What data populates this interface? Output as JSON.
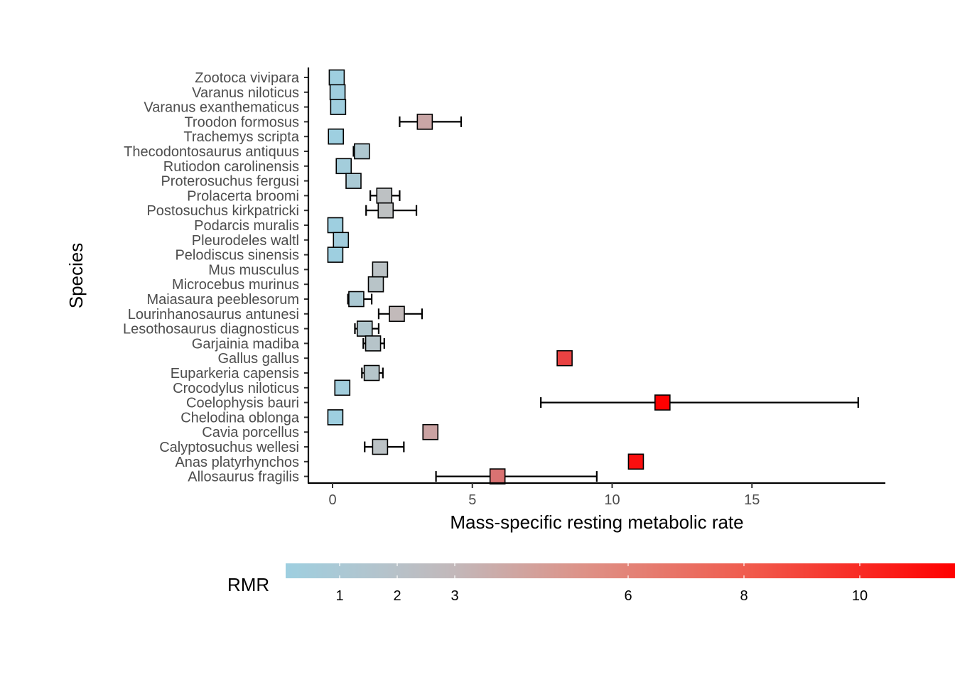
{
  "chart_data": {
    "type": "scatter",
    "subtype": "dot-with-error-bars",
    "xlabel": "Mass-specific resting metabolic rate",
    "ylabel": "Species",
    "xlim": [
      -0.85,
      19.6
    ],
    "x_ticks": [
      0,
      5,
      10,
      15
    ],
    "x_tick_labels": [
      "0",
      "5",
      "10",
      "15"
    ],
    "grid": false,
    "legend": {
      "title": "RMR",
      "position": "bottom",
      "type": "colorbar",
      "ticks": [
        1,
        2,
        3,
        6,
        8,
        10
      ],
      "tick_labels": [
        "1",
        "2",
        "3",
        "6",
        "8",
        "10"
      ],
      "range": [
        0.1,
        11.6
      ]
    },
    "colors": {
      "low": "#9ecfe0",
      "mid": "#c0c0c0",
      "high": "#ff0000",
      "errorbar": "#000000",
      "marker_edge": "#000000"
    },
    "species": [
      "Zootoca vivipara",
      "Varanus niloticus",
      "Varanus exanthematicus",
      "Troodon formosus",
      "Trachemys scripta",
      "Thecodontosaurus antiquus",
      "Rutiodon carolinensis",
      "Proterosuchus fergusi",
      "Prolacerta broomi",
      "Postosuchus kirkpatricki",
      "Podarcis muralis",
      "Pleurodeles waltl",
      "Pelodiscus sinensis",
      "Mus musculus",
      "Microcebus murinus",
      "Maiasaura peeblesorum",
      "Lourinhanosaurus antunesi",
      "Lesothosaurus diagnosticus",
      "Garjainia madiba",
      "Gallus gallus",
      "Euparkeria capensis",
      "Crocodylus niloticus",
      "Coelophysis bauri",
      "Chelodina oblonga",
      "Cavia porcellus",
      "Calyptosuchus wellesi",
      "Anas platyrhynchos",
      "Allosaurus fragilis"
    ],
    "points": [
      {
        "species": "Zootoca vivipara",
        "x": 0.15,
        "rmr": 0.15,
        "lower": null,
        "upper": null
      },
      {
        "species": "Varanus niloticus",
        "x": 0.18,
        "rmr": 0.18,
        "lower": null,
        "upper": null
      },
      {
        "species": "Varanus exanthematicus",
        "x": 0.2,
        "rmr": 0.2,
        "lower": null,
        "upper": null
      },
      {
        "species": "Troodon formosus",
        "x": 3.3,
        "rmr": 3.3,
        "lower": 2.4,
        "upper": 4.6
      },
      {
        "species": "Trachemys scripta",
        "x": 0.12,
        "rmr": 0.12,
        "lower": null,
        "upper": null
      },
      {
        "species": "Thecodontosaurus antiquus",
        "x": 1.05,
        "rmr": 1.05,
        "lower": 0.75,
        "upper": 1.3
      },
      {
        "species": "Rutiodon carolinensis",
        "x": 0.4,
        "rmr": 0.4,
        "lower": 0.3,
        "upper": 0.5
      },
      {
        "species": "Proterosuchus fergusi",
        "x": 0.75,
        "rmr": 0.75,
        "lower": 0.6,
        "upper": 0.9
      },
      {
        "species": "Prolacerta broomi",
        "x": 1.85,
        "rmr": 1.85,
        "lower": 1.35,
        "upper": 2.4
      },
      {
        "species": "Postosuchus kirkpatricki",
        "x": 1.9,
        "rmr": 1.9,
        "lower": 1.2,
        "upper": 3.0
      },
      {
        "species": "Podarcis muralis",
        "x": 0.1,
        "rmr": 0.1,
        "lower": null,
        "upper": null
      },
      {
        "species": "Pleurodeles waltl",
        "x": 0.3,
        "rmr": 0.3,
        "lower": null,
        "upper": null
      },
      {
        "species": "Pelodiscus sinensis",
        "x": 0.1,
        "rmr": 0.1,
        "lower": null,
        "upper": null
      },
      {
        "species": "Mus musculus",
        "x": 1.7,
        "rmr": 1.7,
        "lower": null,
        "upper": null
      },
      {
        "species": "Microcebus murinus",
        "x": 1.55,
        "rmr": 1.55,
        "lower": null,
        "upper": null
      },
      {
        "species": "Maiasaura peeblesorum",
        "x": 0.85,
        "rmr": 0.85,
        "lower": 0.55,
        "upper": 1.4
      },
      {
        "species": "Lourinhanosaurus antunesi",
        "x": 2.3,
        "rmr": 2.3,
        "lower": 1.65,
        "upper": 3.2
      },
      {
        "species": "Lesothosaurus diagnosticus",
        "x": 1.15,
        "rmr": 1.15,
        "lower": 0.8,
        "upper": 1.65
      },
      {
        "species": "Garjainia madiba",
        "x": 1.45,
        "rmr": 1.45,
        "lower": 1.1,
        "upper": 1.85
      },
      {
        "species": "Gallus gallus",
        "x": 8.3,
        "rmr": 8.3,
        "lower": null,
        "upper": null
      },
      {
        "species": "Euparkeria capensis",
        "x": 1.4,
        "rmr": 1.4,
        "lower": 1.05,
        "upper": 1.8
      },
      {
        "species": "Crocodylus niloticus",
        "x": 0.35,
        "rmr": 0.35,
        "lower": null,
        "upper": null
      },
      {
        "species": "Coelophysis bauri",
        "x": 11.8,
        "rmr": 11.8,
        "lower": 7.45,
        "upper": 18.8
      },
      {
        "species": "Chelodina oblonga",
        "x": 0.1,
        "rmr": 0.1,
        "lower": null,
        "upper": null
      },
      {
        "species": "Cavia porcellus",
        "x": 3.5,
        "rmr": 3.5,
        "lower": null,
        "upper": null
      },
      {
        "species": "Calyptosuchus wellesi",
        "x": 1.7,
        "rmr": 1.7,
        "lower": 1.15,
        "upper": 2.55
      },
      {
        "species": "Anas platyrhynchos",
        "x": 10.85,
        "rmr": 10.85,
        "lower": null,
        "upper": null
      },
      {
        "species": "Allosaurus fragilis",
        "x": 5.9,
        "rmr": 5.9,
        "lower": 3.7,
        "upper": 9.45
      }
    ]
  }
}
